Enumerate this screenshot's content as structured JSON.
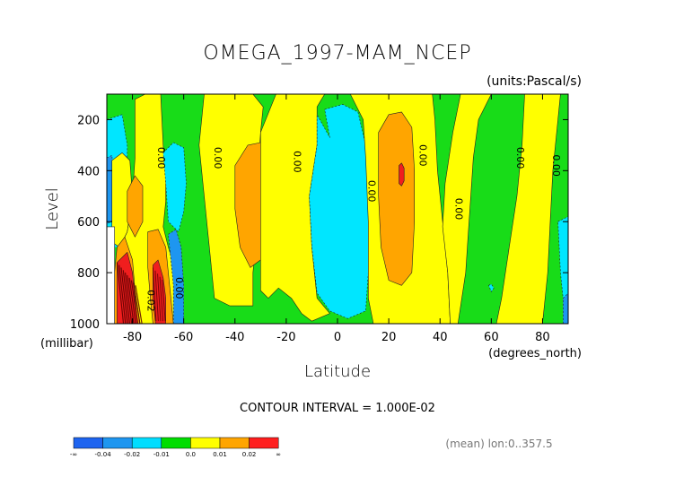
{
  "chart_data": {
    "type": "contour",
    "title": "OMEGA_1997-MAM_NCEP",
    "units": "(units:Pascal/s)",
    "xlabel": "Latitude",
    "ylabel": "Level",
    "x_units": "(degrees_north)",
    "y_units": "(millibar)",
    "xlim": [
      -90,
      90
    ],
    "ylim": [
      1000,
      100
    ],
    "y_reversed": true,
    "x_ticks": [
      -80,
      -60,
      -40,
      -20,
      0,
      20,
      40,
      60,
      80
    ],
    "x_tick_labels": [
      "-80",
      "-60",
      "-40",
      "-20",
      "0",
      "20",
      "40",
      "60",
      "80"
    ],
    "y_ticks": [
      200,
      400,
      600,
      800,
      1000
    ],
    "y_tick_labels": [
      "200",
      "400",
      "600",
      "800",
      "1000"
    ],
    "contour_interval_text": "CONTOUR INTERVAL = 1.000E-02",
    "contour_labels": [
      {
        "text": "0.00",
        "lat": -70,
        "level": 350
      },
      {
        "text": "0.00",
        "lat": -48,
        "level": 350
      },
      {
        "text": "0.00",
        "lat": -17,
        "level": 365
      },
      {
        "text": "0.00",
        "lat": 12,
        "level": 480
      },
      {
        "text": "0.00",
        "lat": 32,
        "level": 340
      },
      {
        "text": "0.00",
        "lat": 46,
        "level": 550
      },
      {
        "text": "0.00",
        "lat": 70,
        "level": 350
      },
      {
        "text": "0.00",
        "lat": 84,
        "level": 380
      },
      {
        "text": "0.00",
        "lat": -63,
        "level": 860
      },
      {
        "text": "0.02",
        "lat": -74,
        "level": 910
      }
    ],
    "regions": [
      {
        "level_class": "0.0",
        "points": [
          [
            -90,
            100
          ],
          [
            90,
            100
          ],
          [
            90,
            1000
          ],
          [
            -90,
            1000
          ]
        ]
      },
      {
        "level_class": "-0.01",
        "points": [
          [
            -90,
            200
          ],
          [
            -84,
            180
          ],
          [
            -82,
            300
          ],
          [
            -82,
            700
          ],
          [
            -88,
            700
          ],
          [
            -90,
            650
          ]
        ]
      },
      {
        "level_class": "-0.02",
        "points": [
          [
            -90,
            350
          ],
          [
            -88,
            340
          ],
          [
            -87,
            460
          ],
          [
            -87,
            590
          ],
          [
            -90,
            610
          ]
        ]
      },
      {
        "level_class": "0.01",
        "points": [
          [
            -88,
            360
          ],
          [
            -84,
            330
          ],
          [
            -81,
            360
          ],
          [
            -80,
            500
          ],
          [
            -82,
            640
          ],
          [
            -85,
            700
          ],
          [
            -88,
            680
          ]
        ]
      },
      {
        "level_class": "0.01",
        "points": [
          [
            -79,
            120
          ],
          [
            -75,
            100
          ],
          [
            -69,
            100
          ],
          [
            -68,
            300
          ],
          [
            -67,
            430
          ],
          [
            -67,
            520
          ],
          [
            -68,
            620
          ],
          [
            -66,
            700
          ],
          [
            -63,
            800
          ],
          [
            -61,
            900
          ],
          [
            -60,
            1000
          ],
          [
            -87,
            1000
          ],
          [
            -87,
            820
          ],
          [
            -85,
            700
          ],
          [
            -82,
            640
          ],
          [
            -80,
            500
          ],
          [
            -79,
            350
          ]
        ]
      },
      {
        "level_class": "0.02",
        "points": [
          [
            -82,
            480
          ],
          [
            -79,
            420
          ],
          [
            -76,
            460
          ],
          [
            -76,
            600
          ],
          [
            -79,
            660
          ],
          [
            -82,
            600
          ]
        ]
      },
      {
        "level_class": "0.02",
        "points": [
          [
            -86,
            700
          ],
          [
            -83,
            660
          ],
          [
            -80,
            750
          ],
          [
            -79,
            870
          ],
          [
            -77,
            1000
          ],
          [
            -87,
            1000
          ],
          [
            -87,
            800
          ]
        ]
      },
      {
        "level_class": "0.02",
        "points": [
          [
            -74,
            640
          ],
          [
            -70,
            630
          ],
          [
            -67,
            700
          ],
          [
            -66,
            800
          ],
          [
            -65,
            900
          ],
          [
            -64,
            1000
          ],
          [
            -72,
            1000
          ],
          [
            -73,
            900
          ],
          [
            -74,
            780
          ]
        ]
      },
      {
        "level_class": "0.02+",
        "points": [
          [
            -86,
            760
          ],
          [
            -82,
            720
          ],
          [
            -80,
            800
          ],
          [
            -79,
            900
          ],
          [
            -78,
            1000
          ],
          [
            -86,
            1000
          ]
        ]
      },
      {
        "level_class": "0.02+",
        "points": [
          [
            -72,
            770
          ],
          [
            -70,
            750
          ],
          [
            -68,
            820
          ],
          [
            -67,
            900
          ],
          [
            -67,
            1000
          ],
          [
            -71,
            1000
          ],
          [
            -72,
            900
          ]
        ]
      },
      {
        "level_class": "-0.01",
        "points": [
          [
            -68,
            330
          ],
          [
            -64,
            290
          ],
          [
            -60,
            310
          ],
          [
            -59,
            450
          ],
          [
            -60,
            560
          ],
          [
            -62,
            640
          ],
          [
            -66,
            600
          ],
          [
            -67,
            450
          ]
        ]
      },
      {
        "level_class": "-0.02",
        "points": [
          [
            -66,
            650
          ],
          [
            -63,
            630
          ],
          [
            -61,
            700
          ],
          [
            -60,
            850
          ],
          [
            -60,
            1000
          ],
          [
            -64,
            1000
          ],
          [
            -64,
            850
          ]
        ]
      },
      {
        "level_class": "0.01",
        "points": [
          [
            -52,
            100
          ],
          [
            -33,
            100
          ],
          [
            -29,
            150
          ],
          [
            -30,
            250
          ],
          [
            -31,
            400
          ],
          [
            -31,
            600
          ],
          [
            -33,
            800
          ],
          [
            -33,
            930
          ],
          [
            -42,
            930
          ],
          [
            -48,
            900
          ],
          [
            -50,
            700
          ],
          [
            -52,
            500
          ],
          [
            -54,
            300
          ]
        ]
      },
      {
        "level_class": "0.02",
        "points": [
          [
            -40,
            380
          ],
          [
            -35,
            300
          ],
          [
            -30,
            290
          ],
          [
            -28,
            400
          ],
          [
            -28,
            600
          ],
          [
            -30,
            750
          ],
          [
            -34,
            780
          ],
          [
            -38,
            700
          ],
          [
            -40,
            550
          ]
        ]
      },
      {
        "level_class": "0.01",
        "points": [
          [
            -30,
            250
          ],
          [
            -24,
            100
          ],
          [
            -5,
            100
          ],
          [
            -8,
            150
          ],
          [
            -8,
            300
          ],
          [
            -11,
            500
          ],
          [
            -10,
            700
          ],
          [
            -8,
            900
          ],
          [
            -3,
            960
          ],
          [
            -10,
            990
          ],
          [
            -14,
            960
          ],
          [
            -18,
            900
          ],
          [
            -23,
            860
          ],
          [
            -27,
            900
          ],
          [
            -30,
            870
          ]
        ]
      },
      {
        "level_class": "-0.01",
        "points": [
          [
            -5,
            160
          ],
          [
            2,
            140
          ],
          [
            8,
            170
          ],
          [
            11,
            300
          ],
          [
            12,
            500
          ],
          [
            12,
            800
          ],
          [
            11,
            950
          ],
          [
            4,
            980
          ],
          [
            -3,
            950
          ],
          [
            -8,
            880
          ],
          [
            -10,
            700
          ],
          [
            -11,
            500
          ],
          [
            -8,
            300
          ],
          [
            -8,
            180
          ],
          [
            -3,
            270
          ]
        ]
      },
      {
        "level_class": "0.01",
        "points": [
          [
            5,
            100
          ],
          [
            37,
            100
          ],
          [
            38,
            200
          ],
          [
            39,
            400
          ],
          [
            41,
            600
          ],
          [
            43,
            800
          ],
          [
            44,
            1000
          ],
          [
            14,
            1000
          ],
          [
            12,
            900
          ],
          [
            12,
            600
          ],
          [
            11,
            350
          ],
          [
            10,
            200
          ]
        ]
      },
      {
        "level_class": "0.02",
        "points": [
          [
            16,
            250
          ],
          [
            20,
            180
          ],
          [
            25,
            170
          ],
          [
            29,
            230
          ],
          [
            30,
            400
          ],
          [
            30,
            600
          ],
          [
            29,
            800
          ],
          [
            25,
            850
          ],
          [
            20,
            830
          ],
          [
            17,
            700
          ],
          [
            16,
            500
          ]
        ]
      },
      {
        "level_class": "0.02+",
        "points": [
          [
            24,
            380
          ],
          [
            25,
            370
          ],
          [
            26,
            390
          ],
          [
            26,
            440
          ],
          [
            25,
            460
          ],
          [
            24,
            450
          ]
        ]
      },
      {
        "level_class": "0.01",
        "points": [
          [
            48,
            100
          ],
          [
            60,
            100
          ],
          [
            55,
            200
          ],
          [
            53,
            350
          ],
          [
            52,
            500
          ],
          [
            51,
            650
          ],
          [
            50,
            800
          ],
          [
            47,
            1000
          ],
          [
            44,
            1000
          ],
          [
            43,
            800
          ],
          [
            41,
            620
          ],
          [
            42,
            450
          ],
          [
            45,
            250
          ]
        ]
      },
      {
        "level_class": "0.01",
        "points": [
          [
            73,
            100
          ],
          [
            87,
            100
          ],
          [
            86,
            200
          ],
          [
            84,
            400
          ],
          [
            83,
            600
          ],
          [
            82,
            800
          ],
          [
            80,
            1000
          ],
          [
            62,
            1000
          ],
          [
            64,
            900
          ],
          [
            67,
            700
          ],
          [
            70,
            500
          ],
          [
            72,
            300
          ]
        ]
      },
      {
        "level_class": "-0.01",
        "points": [
          [
            86,
            600
          ],
          [
            90,
            580
          ],
          [
            90,
            900
          ],
          [
            88,
            900
          ],
          [
            87,
            800
          ]
        ]
      },
      {
        "level_class": "-0.02",
        "points": [
          [
            88,
            900
          ],
          [
            90,
            880
          ],
          [
            90,
            1000
          ],
          [
            88,
            1000
          ]
        ]
      },
      {
        "level_class": "-0.01",
        "points": [
          [
            59,
            850
          ],
          [
            60,
            845
          ],
          [
            61,
            860
          ],
          [
            60,
            875
          ]
        ]
      },
      {
        "level_class": "nodata",
        "points": [
          [
            -90,
            620
          ],
          [
            -87,
            620
          ],
          [
            -87,
            1000
          ],
          [
            -90,
            1000
          ]
        ]
      }
    ],
    "colorbar": {
      "colors": [
        "#1e64f0",
        "#1e96f0",
        "#00ddff",
        "#00dd00",
        "#ffff00",
        "#ffa500",
        "#ff1e1e"
      ],
      "labels": [
        "-∞",
        "-0.04",
        "-0.02",
        "-0.01",
        "0.0",
        "0.01",
        "0.02",
        "∞"
      ]
    },
    "colors": {
      "-0.02": "#1e96f0",
      "-0.01": "#00e6ff",
      "0.0": "#18dc18",
      "0.01": "#ffff00",
      "0.02": "#ffa500",
      "0.02+": "#f01e1e",
      "nodata": "#ffffff"
    },
    "footer_note": "(mean) lon:0..357.5"
  }
}
